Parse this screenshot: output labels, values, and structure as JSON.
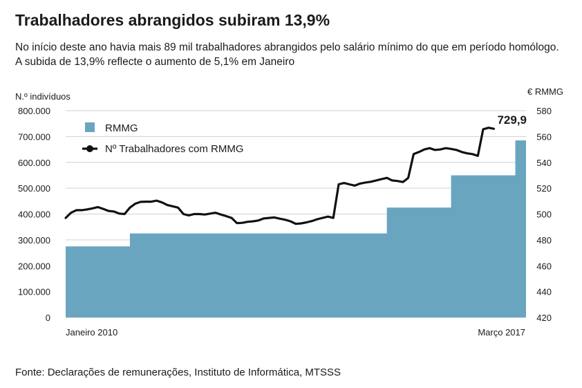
{
  "title": "Trabalhadores abrangidos subiram 13,9%",
  "subtitle": "No início deste ano havia mais 89 mil trabalhadores abrangidos pelo salário mínimo do que em período homólogo. A subida de 13,9% reflecte o aumento de 5,1% em Janeiro",
  "source": "Fonte: Declarações de remunerações, Instituto de Informática, MTSSS",
  "colors": {
    "area": "#6aa5c0",
    "line": "#111111",
    "grid": "#d0d0d0"
  },
  "chart_data": {
    "type": "line",
    "left_axis_label": "N.º indivíduos",
    "right_axis_label": "€ RMMG",
    "left_ticks": [
      "800.000",
      "700.000",
      "600.000",
      "500.000",
      "400.000",
      "300.000",
      "200.000",
      "100.000",
      "0"
    ],
    "right_ticks": [
      "580",
      "560",
      "540",
      "520",
      "500",
      "480",
      "460",
      "440",
      "420"
    ],
    "left_range": [
      0,
      800000
    ],
    "right_range": [
      420,
      580
    ],
    "x_start_label": "Janeiro 2010",
    "x_end_label": "Março 2017",
    "callout": "729,9",
    "legend_position": "top-left",
    "grid": true,
    "series": [
      {
        "name": "RMMG",
        "type": "area",
        "axis": "right",
        "steps": [
          {
            "from": 0,
            "to": 12,
            "value": 475
          },
          {
            "from": 12,
            "to": 60,
            "value": 485
          },
          {
            "from": 60,
            "to": 72,
            "value": 505
          },
          {
            "from": 72,
            "to": 84,
            "value": 530
          },
          {
            "from": 84,
            "to": 86,
            "value": 557
          }
        ]
      },
      {
        "name": "Nº Trabalhadores com RMMG",
        "type": "line",
        "axis": "left",
        "values": [
          385000,
          405000,
          415000,
          415000,
          418000,
          422000,
          427000,
          420000,
          412000,
          410000,
          402000,
          400000,
          425000,
          440000,
          447000,
          448000,
          448000,
          452000,
          445000,
          435000,
          430000,
          425000,
          400000,
          395000,
          400000,
          400000,
          398000,
          402000,
          405000,
          398000,
          392000,
          385000,
          365000,
          366000,
          370000,
          372000,
          375000,
          383000,
          385000,
          387000,
          382000,
          378000,
          372000,
          362000,
          364000,
          368000,
          373000,
          380000,
          385000,
          390000,
          385000,
          515000,
          520000,
          515000,
          510000,
          518000,
          522000,
          525000,
          530000,
          535000,
          540000,
          530000,
          528000,
          524000,
          540000,
          632000,
          640000,
          650000,
          655000,
          648000,
          650000,
          655000,
          652000,
          648000,
          640000,
          635000,
          632000,
          625000,
          728000,
          734000,
          729900
        ]
      }
    ]
  }
}
